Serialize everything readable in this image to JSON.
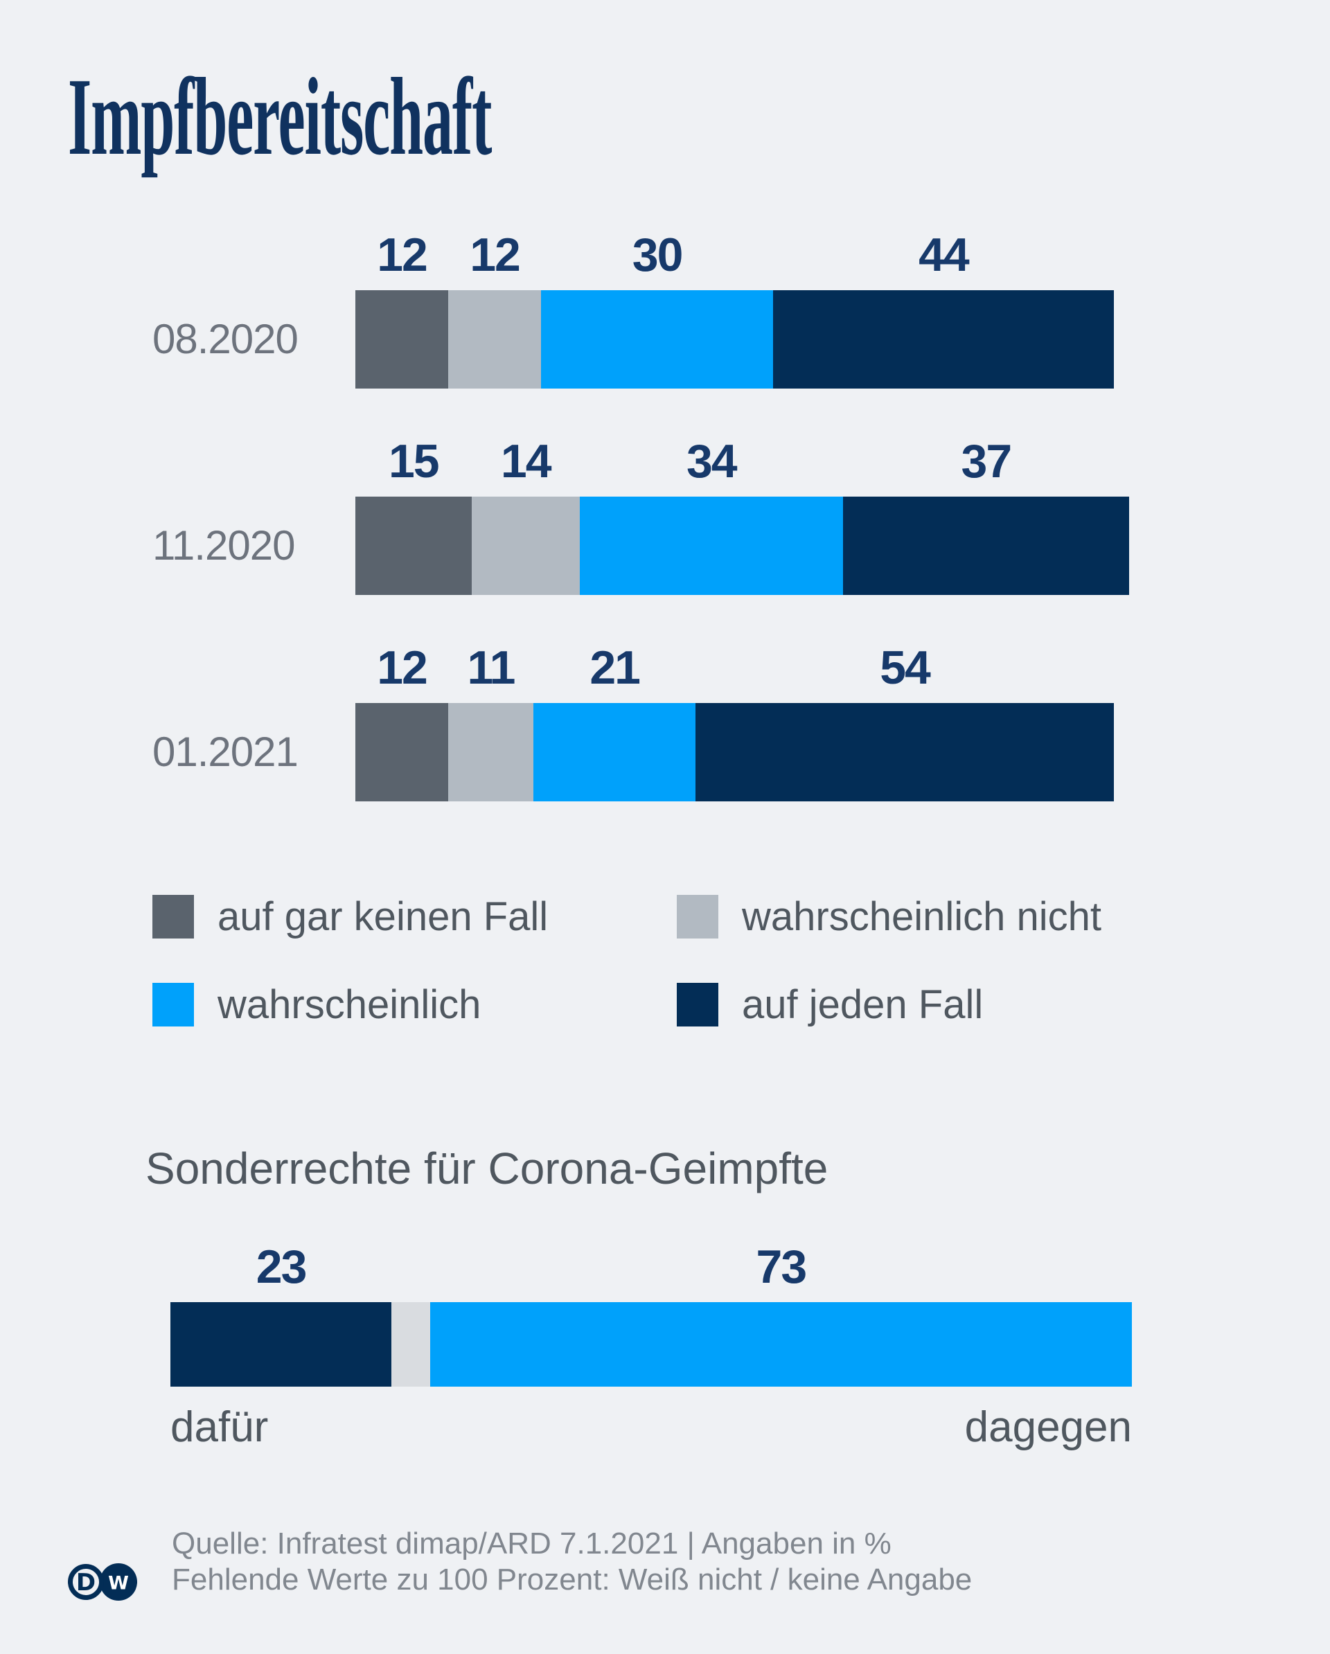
{
  "title": "Impfbereitschaft",
  "subtitle": "Sonderrechte für Corona-Geimpfte",
  "colors": {
    "background": "#eff1f4",
    "no_way": "#5a636d",
    "probably_not": "#b2bac2",
    "probably": "#00a1fb",
    "definitely": "#032d56",
    "missing_gap": "#d9dce0",
    "value_text": "#17396a",
    "category_text": "#6d737d",
    "body_text": "#4f575f",
    "footer_text": "#81878f",
    "title_text": "#10325f"
  },
  "chart_data": [
    {
      "type": "bar",
      "stacked": true,
      "orientation": "horizontal",
      "title": "Impfbereitschaft",
      "categories": [
        "08.2020",
        "11.2020",
        "01.2021"
      ],
      "series": [
        {
          "name": "auf gar keinen Fall",
          "color": "#5a636d",
          "values": [
            12,
            15,
            12
          ]
        },
        {
          "name": "wahrscheinlich nicht",
          "color": "#b2bac2",
          "values": [
            12,
            14,
            11
          ]
        },
        {
          "name": "wahrscheinlich",
          "color": "#00a1fb",
          "values": [
            30,
            34,
            21
          ]
        },
        {
          "name": "auf jeden Fall",
          "color": "#032d56",
          "values": [
            44,
            37,
            54
          ]
        }
      ],
      "xlim": [
        0,
        100
      ],
      "units": "%",
      "grid": false,
      "legend_position": "below"
    },
    {
      "type": "bar",
      "stacked": true,
      "orientation": "horizontal",
      "title": "Sonderrechte für Corona-Geimpfte",
      "segments": [
        {
          "label": "dafür",
          "value": 23,
          "color": "#032d56",
          "show_value": true
        },
        {
          "label": "Weiß nicht / keine Angabe",
          "value": 4,
          "color": "#d9dce0",
          "show_value": false
        },
        {
          "label": "dagegen",
          "value": 73,
          "color": "#00a1fb",
          "show_value": true
        }
      ],
      "axis_labels": {
        "left": "dafür",
        "right": "dagegen"
      },
      "xlim": [
        0,
        100
      ],
      "units": "%",
      "grid": false
    }
  ],
  "legend": {
    "items": [
      {
        "label": "auf gar keinen Fall",
        "color": "#5a636d"
      },
      {
        "label": "wahrscheinlich nicht",
        "color": "#b2bac2"
      },
      {
        "label": "wahrscheinlich",
        "color": "#00a1fb"
      },
      {
        "label": "auf jeden Fall",
        "color": "#032d56"
      }
    ]
  },
  "footer": {
    "line1": "Quelle: Infratest dimap/ARD 7.1.2021 | Angaben in %",
    "line2": "Fehlende Werte zu 100 Prozent: Weiß nicht / keine Angabe"
  },
  "logo": {
    "name": "DW",
    "left_letter": "D",
    "right_letter": "W"
  }
}
